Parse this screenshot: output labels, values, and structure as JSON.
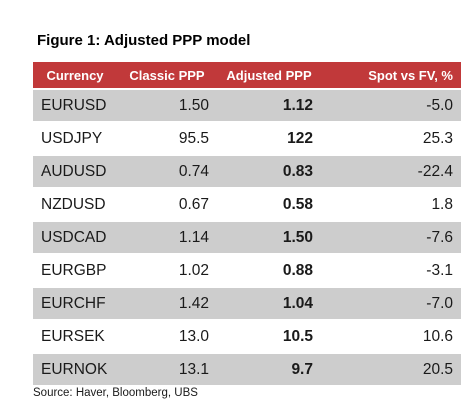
{
  "figure": {
    "title": "Figure 1: Adjusted PPP model"
  },
  "table": {
    "headers": {
      "currency": "Currency",
      "classic_ppp": "Classic PPP",
      "adjusted_ppp": "Adjusted PPP",
      "spot_vs_fv": "Spot vs FV, %"
    },
    "rows": [
      {
        "currency": "EURUSD",
        "classic_ppp": "1.50",
        "adjusted_ppp": "1.12",
        "spot_vs_fv": "-5.0"
      },
      {
        "currency": "USDJPY",
        "classic_ppp": "95.5",
        "adjusted_ppp": "122",
        "spot_vs_fv": "25.3"
      },
      {
        "currency": "AUDUSD",
        "classic_ppp": "0.74",
        "adjusted_ppp": "0.83",
        "spot_vs_fv": "-22.4"
      },
      {
        "currency": "NZDUSD",
        "classic_ppp": "0.67",
        "adjusted_ppp": "0.58",
        "spot_vs_fv": "1.8"
      },
      {
        "currency": "USDCAD",
        "classic_ppp": "1.14",
        "adjusted_ppp": "1.50",
        "spot_vs_fv": "-7.6"
      },
      {
        "currency": "EURGBP",
        "classic_ppp": "1.02",
        "adjusted_ppp": "0.88",
        "spot_vs_fv": "-3.1"
      },
      {
        "currency": "EURCHF",
        "classic_ppp": "1.42",
        "adjusted_ppp": "1.04",
        "spot_vs_fv": "-7.0"
      },
      {
        "currency": "EURSEK",
        "classic_ppp": "13.0",
        "adjusted_ppp": "10.5",
        "spot_vs_fv": "10.6"
      },
      {
        "currency": "EURNOK",
        "classic_ppp": "13.1",
        "adjusted_ppp": "9.7",
        "spot_vs_fv": "20.5"
      }
    ]
  },
  "source": "Source: Haver, Bloomberg, UBS",
  "colors": {
    "header_background": "#c1393a",
    "header_text": "#ffffff",
    "stripe_row": "#cdcdcd",
    "plain_row": "#ffffff"
  }
}
